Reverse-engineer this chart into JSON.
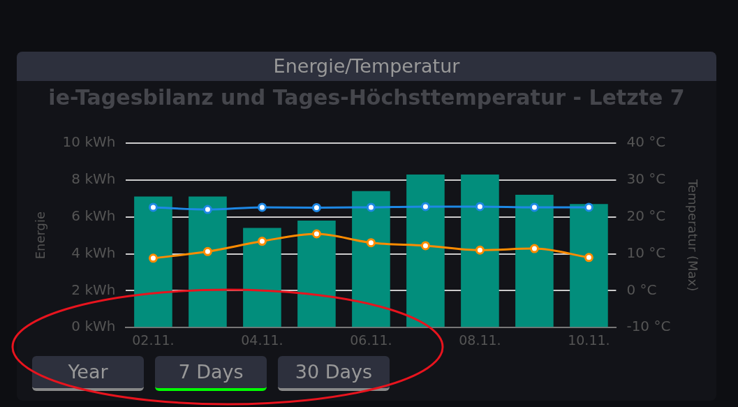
{
  "chart_data": {
    "type": "bar",
    "title": "Energie/Temperatur",
    "subtitle": "ie-Tagesbilanz und Tages-Höchsttemperatur - Letzte 7",
    "ylabel": "Energie",
    "y2label": "Temperatur (Max)",
    "categories": [
      "02.11.",
      null,
      "04.11.",
      null,
      "06.11.",
      null,
      "08.11.",
      null,
      "10.11."
    ],
    "series": [
      {
        "color": "#028e7c",
        "values": [
          7.1,
          7.1,
          5.4,
          5.8,
          7.4,
          8.3,
          8.3,
          7.2,
          6.7
        ]
      },
      {
        "type": "line",
        "axis": "y2",
        "color": "#1e88e5",
        "values": [
          22.6,
          22.0,
          22.6,
          22.5,
          22.6,
          22.8,
          22.8,
          22.6,
          22.6
        ]
      },
      {
        "type": "line",
        "axis": "y2",
        "color": "#ff8c00",
        "values": [
          8.8,
          10.6,
          13.4,
          15.4,
          13.0,
          12.2,
          11.0,
          11.4,
          9.0
        ]
      }
    ],
    "ylim": [
      0,
      10
    ],
    "yticks": [
      {
        "value": 0,
        "label": "0 kWh"
      },
      {
        "value": 2,
        "label": "2 kWh"
      },
      {
        "value": 4,
        "label": "4 kWh"
      },
      {
        "value": 6,
        "label": "6 kWh"
      },
      {
        "value": 8,
        "label": "8 kWh"
      },
      {
        "value": 10,
        "label": "10 kWh"
      }
    ],
    "y2lim": [
      -10,
      40
    ],
    "y2ticks": [
      {
        "value": -10,
        "label": "-10 °C"
      },
      {
        "value": 0,
        "label": "0 °C"
      },
      {
        "value": 10,
        "label": "10 °C"
      },
      {
        "value": 20,
        "label": "20 °C"
      },
      {
        "value": 30,
        "label": "30 °C"
      },
      {
        "value": 40,
        "label": "40 °C"
      }
    ],
    "grid": "y",
    "legend": false,
    "marker": "circle",
    "line_style": "solid",
    "annotations": [
      "Year",
      "7 Days",
      "30 Days"
    ]
  }
}
